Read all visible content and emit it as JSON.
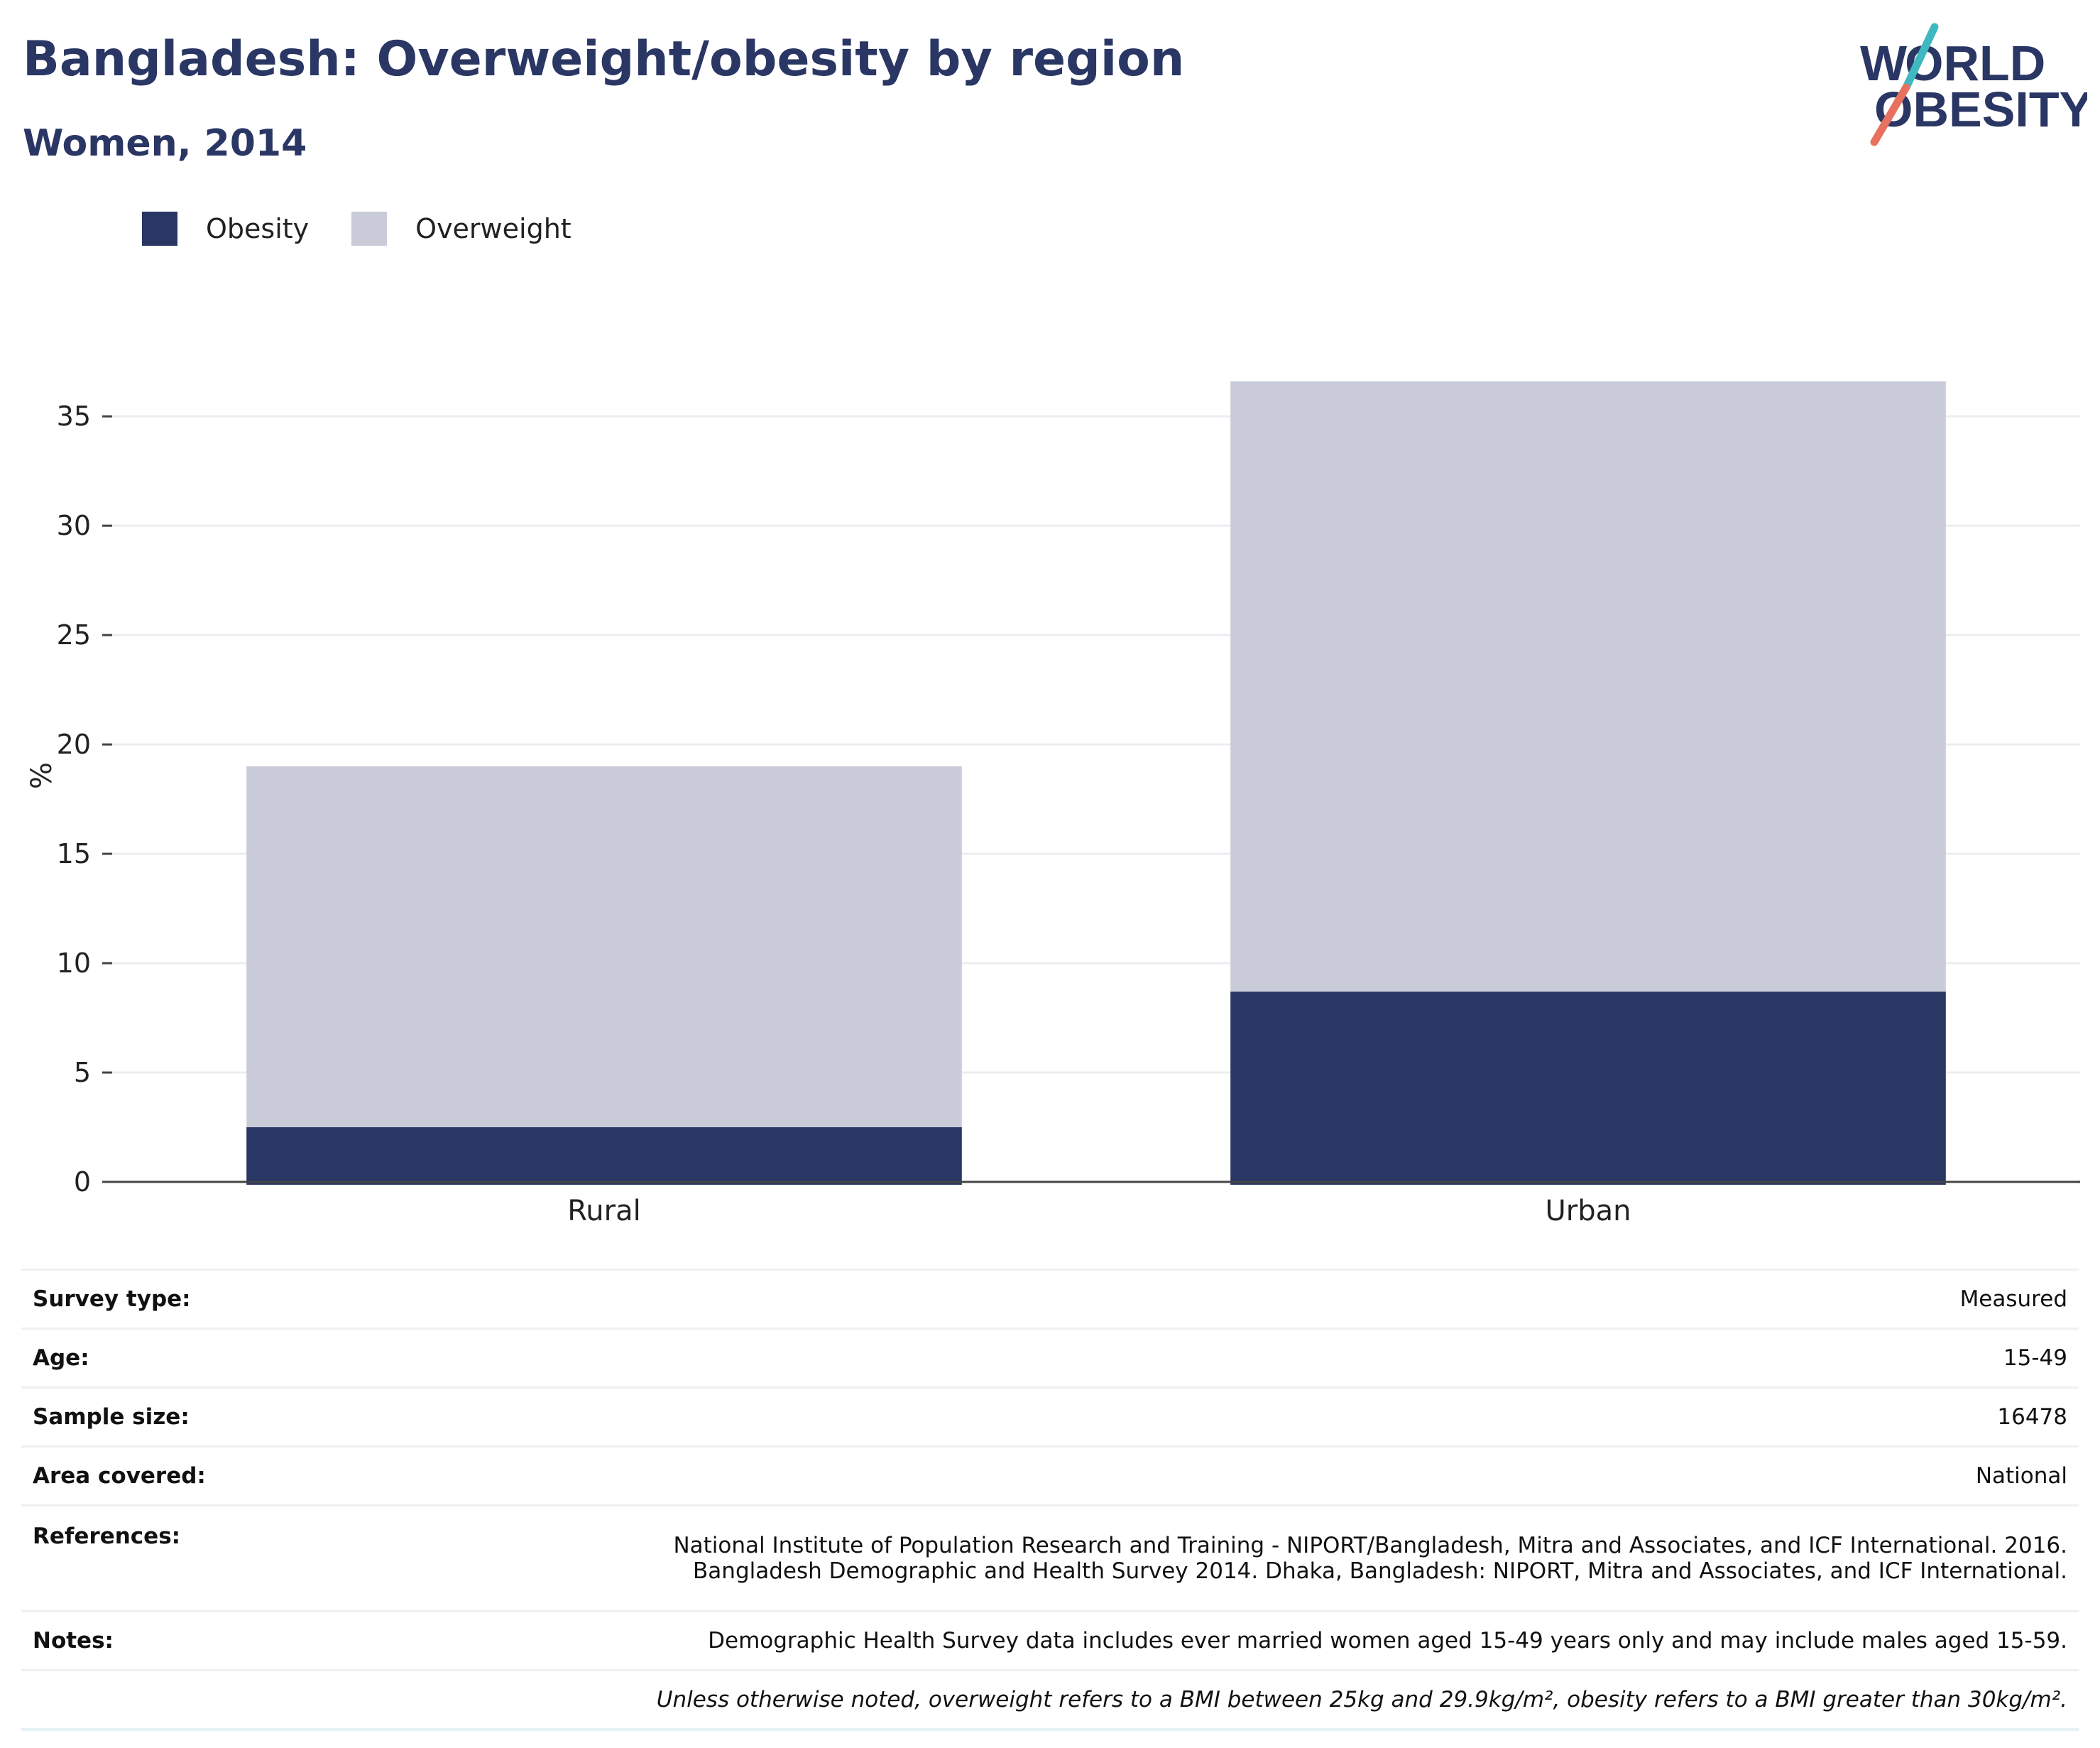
{
  "header": {
    "title": "Bangladesh: Overweight/obesity by region",
    "subtitle": "Women, 2014",
    "logo_text": "WORLD OBESITY"
  },
  "legend": [
    {
      "label": "Obesity",
      "color": "#2a3663"
    },
    {
      "label": "Overweight",
      "color": "#c9ccd8"
    }
  ],
  "chart_data": {
    "type": "bar",
    "stacked": true,
    "categories": [
      "Rural",
      "Urban"
    ],
    "series": [
      {
        "name": "Obesity",
        "values": [
          2.5,
          8.7
        ],
        "color": "#2a3663"
      },
      {
        "name": "Overweight",
        "values": [
          16.5,
          27.9
        ],
        "color": "#c9ccd8"
      }
    ],
    "ylabel": "%",
    "xlabel": "",
    "ylim": [
      0,
      36.5
    ],
    "yticks": [
      0,
      5,
      10,
      15,
      20,
      25,
      30,
      35
    ],
    "grid": true,
    "legend_position": "top-left"
  },
  "info": {
    "rows": [
      {
        "key": "Survey type:",
        "value": "Measured"
      },
      {
        "key": "Age:",
        "value": "15-49"
      },
      {
        "key": "Sample size:",
        "value": "16478"
      },
      {
        "key": "Area covered:",
        "value": "National"
      },
      {
        "key": "References:",
        "value": "National Institute of Population Research and Training - NIPORT/Bangladesh, Mitra and Associates, and ICF International. 2016.",
        "value2": "Bangladesh Demographic and Health Survey 2014. Dhaka, Bangladesh: NIPORT, Mitra and Associates, and ICF International."
      },
      {
        "key": "Notes:",
        "value": "Demographic Health Survey data includes ever married women aged 15-49 years only and may include males aged 15-59."
      }
    ],
    "footnote": "Unless otherwise noted, overweight refers to a BMI between 25kg and 29.9kg/m², obesity refers to a BMI greater than 30kg/m²."
  },
  "colors": {
    "title": "#2a3663",
    "logo_teal": "#3fb8c0",
    "logo_coral": "#e8705f"
  }
}
